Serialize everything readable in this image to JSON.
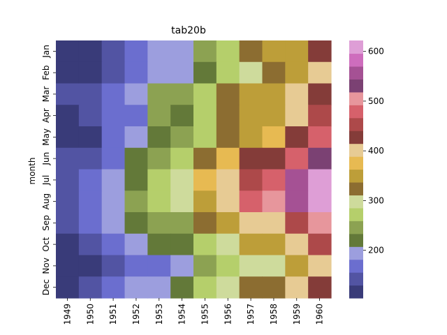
{
  "chart_data": {
    "type": "heatmap",
    "title": "tab20b",
    "xlabel": "",
    "ylabel": "month",
    "x": [
      "1949",
      "1950",
      "1951",
      "1952",
      "1953",
      "1954",
      "1955",
      "1956",
      "1957",
      "1958",
      "1959",
      "1960"
    ],
    "y": [
      "Jan",
      "Feb",
      "Mar",
      "Apr",
      "May",
      "Jun",
      "Jul",
      "Aug",
      "Sep",
      "Oct",
      "Nov",
      "Dec"
    ],
    "values": [
      [
        112,
        115,
        145,
        171,
        196,
        204,
        242,
        284,
        315,
        340,
        360,
        417
      ],
      [
        118,
        126,
        150,
        180,
        196,
        188,
        233,
        277,
        301,
        318,
        342,
        391
      ],
      [
        132,
        141,
        178,
        193,
        236,
        235,
        267,
        317,
        356,
        362,
        406,
        419
      ],
      [
        129,
        135,
        163,
        181,
        235,
        227,
        269,
        313,
        348,
        348,
        396,
        461
      ],
      [
        121,
        125,
        172,
        183,
        229,
        234,
        270,
        318,
        355,
        363,
        420,
        472
      ],
      [
        135,
        149,
        178,
        218,
        243,
        264,
        315,
        374,
        422,
        435,
        472,
        535
      ],
      [
        148,
        170,
        199,
        230,
        264,
        302,
        364,
        413,
        465,
        491,
        548,
        622
      ],
      [
        148,
        170,
        199,
        242,
        272,
        293,
        347,
        405,
        467,
        505,
        559,
        606
      ],
      [
        136,
        158,
        184,
        209,
        237,
        259,
        312,
        355,
        404,
        404,
        463,
        508
      ],
      [
        119,
        133,
        162,
        191,
        211,
        229,
        274,
        306,
        347,
        359,
        407,
        461
      ],
      [
        104,
        114,
        146,
        172,
        180,
        203,
        237,
        271,
        305,
        310,
        362,
        390
      ],
      [
        118,
        140,
        166,
        194,
        201,
        229,
        278,
        306,
        336,
        337,
        405,
        432
      ]
    ],
    "colorbar": {
      "ticks": [
        200,
        300,
        400,
        500,
        600
      ],
      "range": [
        104,
        622
      ],
      "colormap": "tab20b",
      "colors": [
        "#393b79",
        "#5254a3",
        "#6b6ecf",
        "#9c9ede",
        "#637939",
        "#8ca252",
        "#b5cf6b",
        "#cedb9c",
        "#8c6d31",
        "#bd9e39",
        "#e7ba52",
        "#e7cb94",
        "#843c39",
        "#ad494a",
        "#d6616b",
        "#e7969c",
        "#7b4173",
        "#a55194",
        "#ce6dbd",
        "#de9ed6"
      ]
    },
    "grid": false
  }
}
